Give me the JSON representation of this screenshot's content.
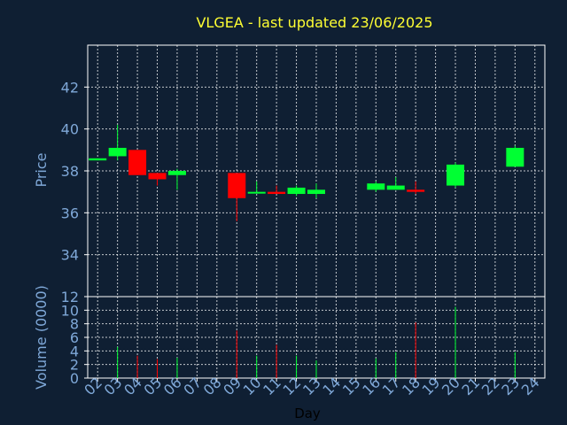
{
  "colors": {
    "background": "#0f1f33",
    "title": "#ffff33",
    "axis_text": "#7fa8d8",
    "frame": "#ffffff",
    "grid": "#ffffff",
    "up": "#00ff33",
    "down": "#ff0000",
    "xlabel": "#000000"
  },
  "chart_data": [
    {
      "type": "candlestick",
      "title": "VLGEA - last updated 23/06/2025",
      "ylabel": "Price",
      "ylim": [
        32,
        44
      ],
      "yticks": [
        34,
        36,
        38,
        40,
        42
      ],
      "grid": true,
      "x_tick_labels": [
        "02",
        "03",
        "04",
        "05",
        "06",
        "07",
        "08",
        "09",
        "10",
        "11",
        "12",
        "13",
        "14",
        "15",
        "16",
        "17",
        "18",
        "19",
        "20",
        "21",
        "22",
        "23",
        "24"
      ],
      "candles": [
        {
          "day": "02",
          "open": 38.5,
          "high": 38.6,
          "low": 38.5,
          "close": 38.6
        },
        {
          "day": "03",
          "open": 38.7,
          "high": 40.2,
          "low": 38.5,
          "close": 39.1
        },
        {
          "day": "04",
          "open": 39.0,
          "high": 39.0,
          "low": 37.8,
          "close": 37.8
        },
        {
          "day": "05",
          "open": 37.9,
          "high": 37.9,
          "low": 37.3,
          "close": 37.6
        },
        {
          "day": "06",
          "open": 37.8,
          "high": 38.1,
          "low": 37.1,
          "close": 38.0
        },
        {
          "day": "09",
          "open": 37.9,
          "high": 37.9,
          "low": 35.6,
          "close": 36.7
        },
        {
          "day": "10",
          "open": 37.0,
          "high": 37.5,
          "low": 37.0,
          "close": 37.0
        },
        {
          "day": "11",
          "open": 37.0,
          "high": 37.3,
          "low": 36.9,
          "close": 36.9
        },
        {
          "day": "12",
          "open": 36.9,
          "high": 37.3,
          "low": 36.8,
          "close": 37.2
        },
        {
          "day": "13",
          "open": 36.9,
          "high": 37.4,
          "low": 36.7,
          "close": 37.1
        },
        {
          "day": "16",
          "open": 37.1,
          "high": 37.5,
          "low": 37.0,
          "close": 37.4
        },
        {
          "day": "17",
          "open": 37.1,
          "high": 37.7,
          "low": 37.1,
          "close": 37.3
        },
        {
          "day": "18",
          "open": 37.1,
          "high": 37.5,
          "low": 36.9,
          "close": 37.0
        },
        {
          "day": "20",
          "open": 37.3,
          "high": 38.4,
          "low": 37.2,
          "close": 38.3
        },
        {
          "day": "23",
          "open": 38.2,
          "high": 39.2,
          "low": 38.2,
          "close": 39.1
        }
      ]
    },
    {
      "type": "bar",
      "ylabel": "Volume (0000)",
      "xlabel": "Day",
      "ylim": [
        0,
        12
      ],
      "yticks": [
        0,
        2,
        4,
        6,
        8,
        10,
        12
      ],
      "grid": true,
      "bars": [
        {
          "day": "03",
          "value": 4.6,
          "direction": "up"
        },
        {
          "day": "04",
          "value": 3.3,
          "direction": "down"
        },
        {
          "day": "05",
          "value": 2.8,
          "direction": "down"
        },
        {
          "day": "06",
          "value": 3.0,
          "direction": "up"
        },
        {
          "day": "09",
          "value": 7.0,
          "direction": "down"
        },
        {
          "day": "10",
          "value": 3.3,
          "direction": "up"
        },
        {
          "day": "11",
          "value": 4.9,
          "direction": "down"
        },
        {
          "day": "12",
          "value": 3.3,
          "direction": "up"
        },
        {
          "day": "13",
          "value": 2.6,
          "direction": "up"
        },
        {
          "day": "16",
          "value": 2.9,
          "direction": "up"
        },
        {
          "day": "17",
          "value": 3.8,
          "direction": "up"
        },
        {
          "day": "18",
          "value": 8.2,
          "direction": "down"
        },
        {
          "day": "20",
          "value": 10.5,
          "direction": "up"
        },
        {
          "day": "23",
          "value": 3.8,
          "direction": "up"
        }
      ]
    }
  ]
}
